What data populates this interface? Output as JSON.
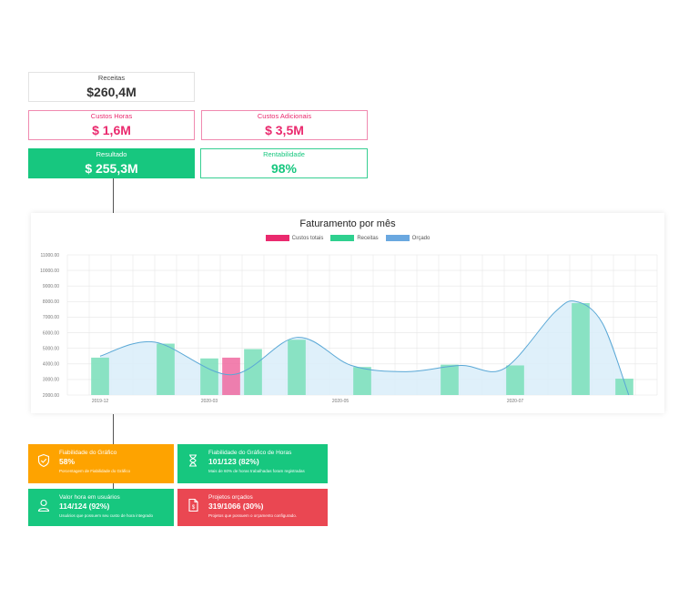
{
  "kpis": {
    "receitas": {
      "label": "Receitas",
      "value": "$260,4M"
    },
    "custos_horas": {
      "label": "Custos Horas",
      "value": "$ 1,6M"
    },
    "custos_adicionais": {
      "label": "Custos Adicionais",
      "value": "$ 3,5M"
    },
    "resultado": {
      "label": "Resultado",
      "value": "$ 255,3M"
    },
    "rentabilidade": {
      "label": "Rentabilidade",
      "value": "98%"
    }
  },
  "colors": {
    "custos": "#f06aa0",
    "receitas": "#7fe0bd",
    "orcado_line": "#5aa8d6",
    "orcado_fill": "#d9edf9",
    "grid": "#e6e6e6"
  },
  "chart_data": {
    "type": "bar",
    "title": "Faturamento por mês",
    "legend": [
      "Custos totais",
      "Receitas",
      "Orçado"
    ],
    "legend_position": "top-center",
    "grid": true,
    "ylim": [
      2000,
      11000
    ],
    "y_ticks": [
      "11000.00",
      "10000.00",
      "9000.00",
      "8000.00",
      "7000.00",
      "6000.00",
      "5000.00",
      "4000.00",
      "3000.00",
      "2000.00"
    ],
    "x_tick_labels": [
      {
        "label": "2019-12",
        "index": 1
      },
      {
        "label": "2020-03",
        "index": 6
      },
      {
        "label": "2020-05",
        "index": 12
      },
      {
        "label": "2020-07",
        "index": 20
      }
    ],
    "n_slots": 27,
    "receitas": [
      {
        "index": 1,
        "value": 4400
      },
      {
        "index": 4,
        "value": 5300
      },
      {
        "index": 6,
        "value": 4350
      },
      {
        "index": 8,
        "value": 4950
      },
      {
        "index": 10,
        "value": 5550
      },
      {
        "index": 13,
        "value": 3800
      },
      {
        "index": 17,
        "value": 3950
      },
      {
        "index": 20,
        "value": 3900
      },
      {
        "index": 23,
        "value": 7900
      },
      {
        "index": 25,
        "value": 3050
      }
    ],
    "custos_totais": [
      {
        "index": 7,
        "value": 4400
      }
    ],
    "orcado": [
      {
        "x": 1,
        "value": 4500
      },
      {
        "x": 3.5,
        "value": 5400
      },
      {
        "x": 7,
        "value": 3300
      },
      {
        "x": 10,
        "value": 5700
      },
      {
        "x": 12.5,
        "value": 3900
      },
      {
        "x": 15,
        "value": 3500
      },
      {
        "x": 17.5,
        "value": 3900
      },
      {
        "x": 19.5,
        "value": 3700
      },
      {
        "x": 21.8,
        "value": 7300
      },
      {
        "x": 22.8,
        "value": 8000
      },
      {
        "x": 24,
        "value": 6600
      },
      {
        "x": 25.2,
        "value": 2000
      }
    ]
  },
  "tiles": [
    {
      "title": "Fiabilidade do Gráfico",
      "value": "58%",
      "desc": "Porcentagem de Fiabilidade do Gráfico",
      "icon": "shield-check-icon"
    },
    {
      "title": "Fiabilidade do Gráfico de Horas",
      "value": "101/123 (82%)",
      "desc": "Mais de 60% de horas trabalhadas foram registradas",
      "icon": "hourglass-icon"
    },
    {
      "title": "Valor hora em usuários",
      "value": "114/124 (92%)",
      "desc": "Usuários que possuem seu custo de hora integrado",
      "icon": "user-icon"
    },
    {
      "title": "Projetos orçados",
      "value": "319/1066 (30%)",
      "desc": "Projetos que possuem o orçamento configurado.",
      "icon": "document-dollar-icon"
    }
  ]
}
